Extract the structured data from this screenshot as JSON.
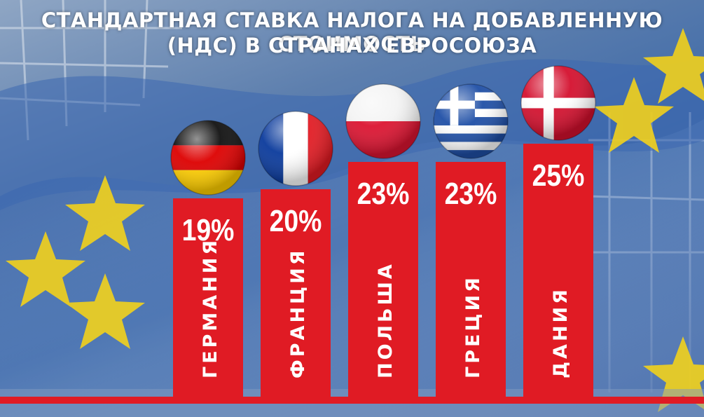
{
  "chart_data": {
    "type": "bar",
    "title_line1": "СТАНДАРТНАЯ СТАВКА НАЛОГА НА ДОБАВЛЕННУЮ СТОИМОСТЬ",
    "title_line2": "(НДС) В СТРАНАХ ЕВРОСОЮЗА",
    "categories": [
      "ГЕРМАНИЯ",
      "ФРАНЦИЯ",
      "ПОЛЬША",
      "ГРЕЦИЯ",
      "ДАНИЯ"
    ],
    "values": [
      19,
      20,
      23,
      23,
      25
    ],
    "value_labels": [
      "19%",
      "20%",
      "23%",
      "23%",
      "25%"
    ],
    "flags": [
      "germany-flag-icon",
      "france-flag-icon",
      "poland-flag-icon",
      "greece-flag-icon",
      "denmark-flag-icon"
    ],
    "bar_color": "#e01b24",
    "xlabel": "",
    "ylabel": "",
    "grid": false
  }
}
